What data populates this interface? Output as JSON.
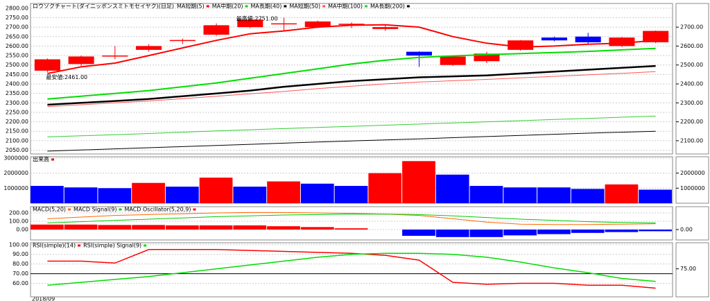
{
  "chart_data": [
    {
      "type": "candlestick",
      "title": "ロウソクチャート(ダイニッポンスミトモセイヤク)(日足)",
      "date_label": "2018/09",
      "open": [
        2470,
        2505,
        2545,
        2580,
        2628,
        2660,
        2700,
        2716,
        2700,
        2712,
        2690,
        2570,
        2500,
        2520,
        2580,
        2645,
        2650,
        2600,
        2620
      ],
      "high": [
        2535,
        2550,
        2600,
        2610,
        2640,
        2720,
        2751,
        2750,
        2735,
        2725,
        2710,
        2572,
        2550,
        2570,
        2632,
        2650,
        2670,
        2648,
        2682
      ],
      "low": [
        2461,
        2495,
        2530,
        2570,
        2610,
        2655,
        2695,
        2680,
        2695,
        2695,
        2680,
        2490,
        2495,
        2510,
        2575,
        2625,
        2610,
        2595,
        2615
      ],
      "close": [
        2530,
        2545,
        2550,
        2600,
        2632,
        2710,
        2740,
        2720,
        2730,
        2718,
        2700,
        2550,
        2545,
        2560,
        2630,
        2630,
        2620,
        2645,
        2680
      ],
      "up_color": "#ff0000",
      "down_color": "#0000ff",
      "series": [
        {
          "name": "MA短期(5)",
          "color": "#ff0000",
          "width": 2,
          "values": [
            2455,
            2490,
            2510,
            2550,
            2590,
            2630,
            2665,
            2680,
            2700,
            2710,
            2712,
            2700,
            2650,
            2615,
            2595,
            2600,
            2610,
            2615,
            2630
          ]
        },
        {
          "name": "MA中期(20)",
          "color": "#00dd00",
          "width": 2,
          "values": [
            2320,
            2335,
            2350,
            2365,
            2385,
            2405,
            2430,
            2455,
            2480,
            2505,
            2525,
            2540,
            2548,
            2555,
            2560,
            2566,
            2572,
            2580,
            2588
          ]
        },
        {
          "name": "MA長期(40)",
          "color": "#000000",
          "width": 2.5,
          "values": [
            2290,
            2300,
            2310,
            2320,
            2335,
            2350,
            2365,
            2385,
            2400,
            2415,
            2425,
            2435,
            2440,
            2445,
            2455,
            2465,
            2475,
            2485,
            2495
          ]
        },
        {
          "name": "MA短期(50)",
          "color": "#ff5555",
          "width": 1,
          "values": [
            2280,
            2290,
            2300,
            2310,
            2322,
            2335,
            2348,
            2360,
            2375,
            2388,
            2400,
            2410,
            2417,
            2424,
            2432,
            2440,
            2448,
            2456,
            2465
          ]
        },
        {
          "name": "MA中期(100)",
          "color": "#33cc33",
          "width": 1,
          "values": [
            2120,
            2126,
            2132,
            2138,
            2145,
            2152,
            2158,
            2164,
            2170,
            2176,
            2182,
            2188,
            2194,
            2200,
            2206,
            2212,
            2218,
            2224,
            2230
          ]
        },
        {
          "name": "MA長期(200)",
          "color": "#000000",
          "width": 1,
          "values": [
            2045,
            2051,
            2057,
            2063,
            2069,
            2075,
            2081,
            2087,
            2093,
            2099,
            2104,
            2110,
            2116,
            2122,
            2128,
            2134,
            2140,
            2145,
            2150
          ]
        }
      ],
      "annotations": [
        "最安値:2461.00",
        "最高値:2751.00"
      ],
      "ylim": [
        2030,
        2825
      ],
      "yticks": [
        {
          "value": 2050,
          "label": "2050.00"
        },
        {
          "value": 2100,
          "label": "2100.00"
        },
        {
          "value": 2150,
          "label": "2150.00"
        },
        {
          "value": 2200,
          "label": "2200.00"
        },
        {
          "value": 2250,
          "label": "2250.00"
        },
        {
          "value": 2300,
          "label": "2300.00"
        },
        {
          "value": 2350,
          "label": "2350.00"
        },
        {
          "value": 2400,
          "label": "2400.00"
        },
        {
          "value": 2450,
          "label": "2450.00"
        },
        {
          "value": 2500,
          "label": "2500.00"
        },
        {
          "value": 2550,
          "label": "2550.00"
        },
        {
          "value": 2600,
          "label": "2600.00"
        },
        {
          "value": 2650,
          "label": "2650.00"
        },
        {
          "value": 2700,
          "label": "2700.00"
        },
        {
          "value": 2750,
          "label": "2750.00"
        },
        {
          "value": 2800,
          "label": "2800.00"
        }
      ],
      "y2ticks": [
        {
          "value": 2100,
          "label": "2100.00"
        },
        {
          "value": 2200,
          "label": "2200.00"
        },
        {
          "value": 2300,
          "label": "2300.00"
        },
        {
          "value": 2400,
          "label": "2400.00"
        },
        {
          "value": 2500,
          "label": "2500.00"
        },
        {
          "value": 2600,
          "label": "2600.00"
        },
        {
          "value": 2700,
          "label": "2700.00"
        }
      ],
      "grid": true
    },
    {
      "type": "bar",
      "series": [
        {
          "name": "出来高",
          "color": "#ff0000",
          "values": [
            1150000,
            1050000,
            1000000,
            1350000,
            1100000,
            1700000,
            1100000,
            1450000,
            1300000,
            1150000,
            2000000,
            2800000,
            1900000,
            1150000,
            1050000,
            1050000,
            950000,
            1250000,
            900000
          ],
          "colors": [
            "#0000ff",
            "#0000ff",
            "#0000ff",
            "#ff0000",
            "#0000ff",
            "#ff0000",
            "#0000ff",
            "#ff0000",
            "#0000ff",
            "#0000ff",
            "#ff0000",
            "#ff0000",
            "#0000ff",
            "#0000ff",
            "#0000ff",
            "#0000ff",
            "#0000ff",
            "#ff0000",
            "#0000ff"
          ]
        }
      ],
      "ylim": [
        0,
        3090000
      ],
      "yticks": [
        1000000,
        2000000,
        3000000
      ],
      "y2ticks": [
        1000000,
        2000000
      ],
      "grid": true
    },
    {
      "type": "combo",
      "series": [
        {
          "name": "MACD(5,20)",
          "kind": "line",
          "color": "#ff6600",
          "width": 1,
          "values": [
            130,
            150,
            170,
            180,
            190,
            200,
            205,
            205,
            200,
            195,
            185,
            170,
            130,
            90,
            65,
            60,
            60,
            65,
            70
          ]
        },
        {
          "name": "MACD Signal(9)",
          "kind": "line",
          "color": "#00cc00",
          "width": 1,
          "values": [
            80,
            95,
            110,
            125,
            140,
            155,
            165,
            175,
            180,
            185,
            185,
            180,
            165,
            145,
            125,
            110,
            95,
            85,
            80
          ]
        },
        {
          "name": "MACD Oscillator(5,20,9)",
          "kind": "bar",
          "color": "#ff0000",
          "negative_color": "#0000ff",
          "values": [
            60,
            60,
            55,
            55,
            50,
            50,
            50,
            40,
            30,
            15,
            0,
            -75,
            -90,
            -90,
            -70,
            -55,
            -40,
            -30,
            -20
          ]
        }
      ],
      "ylim": [
        -125,
        275
      ],
      "yticks": [
        {
          "value": 0,
          "label": "0.00"
        },
        {
          "value": 100,
          "label": "100.00"
        },
        {
          "value": 200,
          "label": "200.00"
        }
      ],
      "y2ticks": [
        {
          "value": 0,
          "label": "0.00"
        }
      ],
      "grid": true
    },
    {
      "type": "line",
      "series": [
        {
          "name": "RSI(simple)(14)",
          "color": "#ff0000",
          "width": 1.5,
          "values": [
            83,
            83,
            81,
            95,
            95,
            95,
            94,
            93,
            92,
            91,
            89,
            84,
            61,
            59,
            60,
            60,
            58,
            58,
            55
          ]
        },
        {
          "name": "RSI(simple) Signal(9)",
          "color": "#00dd00",
          "width": 1.5,
          "values": [
            58,
            61,
            64,
            67,
            71,
            75,
            79,
            83,
            87,
            90,
            91,
            91,
            90,
            87,
            82,
            76,
            71,
            65,
            62
          ]
        }
      ],
      "hlines": [
        70
      ],
      "ylim": [
        46,
        102
      ],
      "yticks": [
        {
          "value": 60,
          "label": "60.00"
        },
        {
          "value": 70,
          "label": "70.00"
        },
        {
          "value": 80,
          "label": "80.00"
        },
        {
          "value": 90,
          "label": "90.00"
        },
        {
          "value": 100,
          "label": "100.00"
        }
      ],
      "y2ticks": [
        {
          "value": 75,
          "label": "75.00"
        }
      ],
      "grid": true
    }
  ]
}
